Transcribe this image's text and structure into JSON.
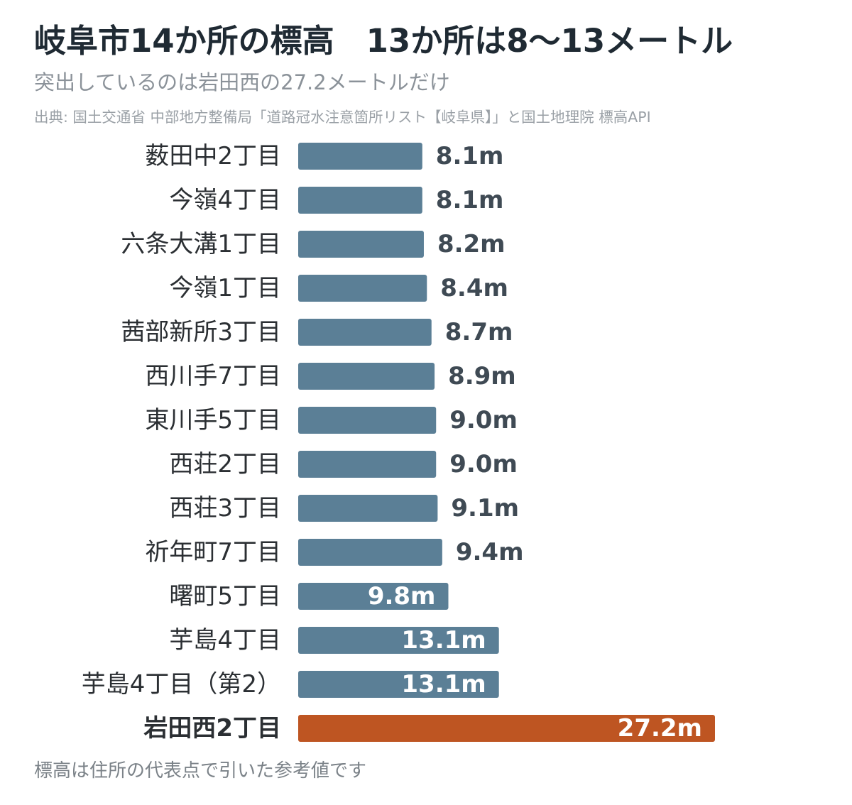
{
  "header": {
    "title": "岐阜市14か所の標高　13か所は8〜13メートル",
    "subtitle": "突出しているのは岩田西の27.2メートルだけ",
    "source": "出典: 国土交通省 中部地方整備局「道路冠水注意箇所リスト【岐阜県】」と国土地理院 標高API"
  },
  "footnote": "標高は住所の代表点で引いた参考値です",
  "chart_data": {
    "type": "bar",
    "orientation": "horizontal",
    "unit": "m",
    "categories": [
      "薮田中2丁目",
      "今嶺4丁目",
      "六条大溝1丁目",
      "今嶺1丁目",
      "茜部新所3丁目",
      "西川手7丁目",
      "東川手5丁目",
      "西荘2丁目",
      "西荘3丁目",
      "祈年町7丁目",
      "曙町5丁目",
      "芋島4丁目",
      "芋島4丁目（第2）",
      "岩田西2丁目"
    ],
    "values": [
      8.1,
      8.1,
      8.2,
      8.4,
      8.7,
      8.9,
      9.0,
      9.0,
      9.1,
      9.4,
      9.8,
      13.1,
      13.1,
      27.2
    ],
    "value_labels": [
      "8.1m",
      "8.1m",
      "8.2m",
      "8.4m",
      "8.7m",
      "8.9m",
      "9.0m",
      "9.0m",
      "9.1m",
      "9.4m",
      "9.8m",
      "13.1m",
      "13.1m",
      "27.2m"
    ],
    "highlight_index": 13,
    "colors": {
      "bar": "#5b7f96",
      "highlight": "#be5522",
      "label_outside": "#3f4a54",
      "label_inside": "#ffffff",
      "category": "#2b2f33"
    },
    "xlim": [
      0,
      27.2
    ],
    "grid": false,
    "legend": "none"
  }
}
